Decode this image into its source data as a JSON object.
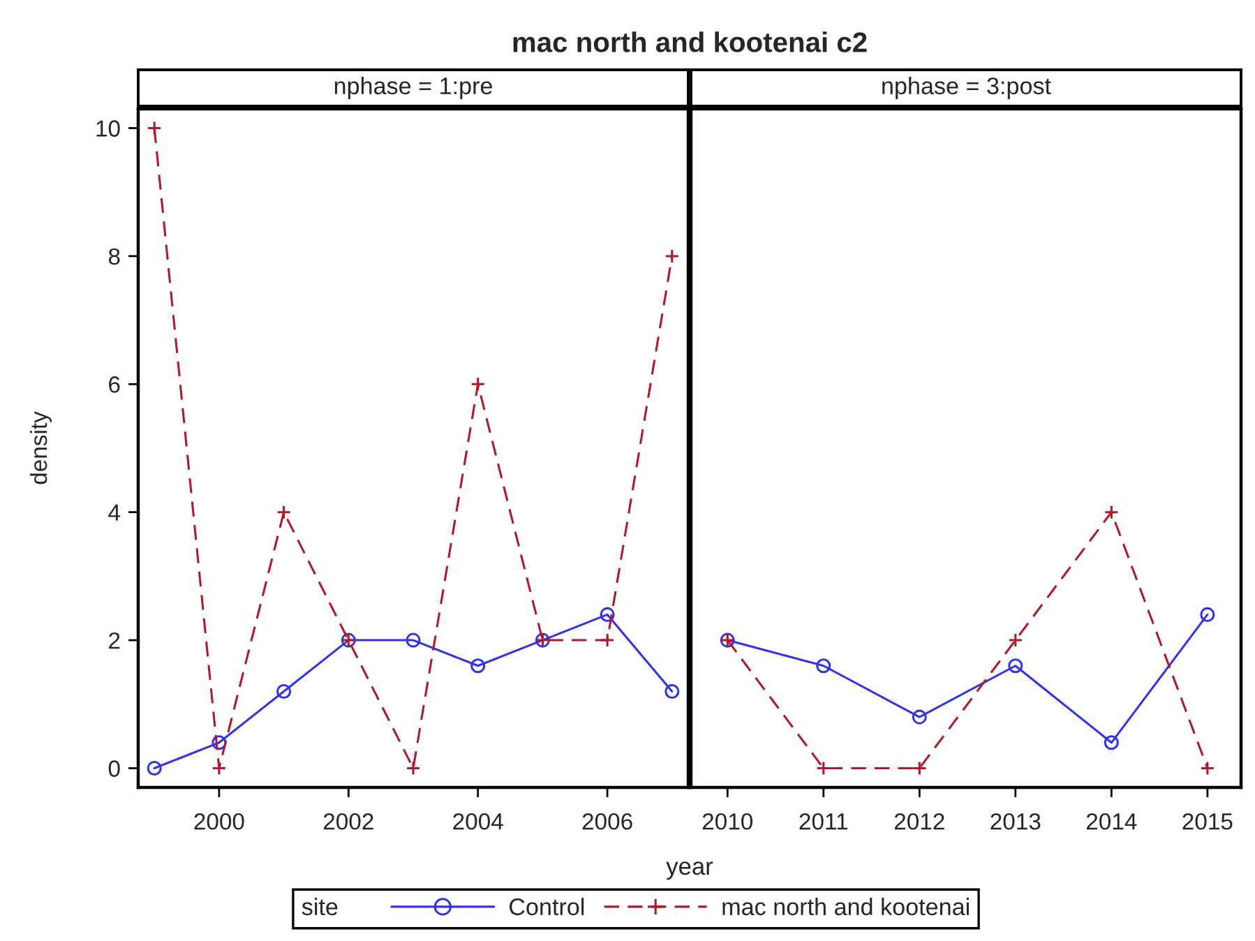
{
  "chart_data": [
    {
      "type": "line",
      "title": "mac north and kootenai c2",
      "subtitle": "nphase = 1:pre",
      "xlabel": "year",
      "ylabel": "density",
      "legend_title": "site",
      "legend": "bottom",
      "x": [
        1999,
        2000,
        2001,
        2002,
        2003,
        2004,
        2005,
        2006,
        2007
      ],
      "series": [
        {
          "name": "Control",
          "color": "#3333e6",
          "marker": "circle",
          "line_style": "solid",
          "values": [
            0,
            0.4,
            1.2,
            2,
            2,
            1.6,
            2,
            2.4,
            1.2
          ]
        },
        {
          "name": "mac north and kootenai",
          "color": "#b2182b",
          "marker": "cross",
          "line_style": "dashed",
          "values": [
            10,
            0,
            4,
            2,
            0,
            6,
            2,
            2,
            8
          ]
        }
      ],
      "xlim": [
        1998.75,
        2007.25
      ],
      "xticks": [
        2000,
        2002,
        2004,
        2006
      ],
      "ylim": [
        -0.3,
        10.3
      ],
      "yticks": [
        0,
        2,
        4,
        6,
        8,
        10
      ]
    },
    {
      "type": "line",
      "subtitle": "nphase = 3:post",
      "tick_labels": "x",
      "x": [
        2010,
        2011,
        2012,
        2013,
        2014,
        2015
      ],
      "series": [
        {
          "name": "Control",
          "color": "#3333e6",
          "marker": "circle",
          "line_style": "solid",
          "values": [
            2,
            1.6,
            0.8,
            1.6,
            0.4,
            2.4
          ]
        },
        {
          "name": "mac north and kootenai",
          "color": "#b2182b",
          "marker": "cross",
          "line_style": "dashed",
          "values": [
            2,
            0,
            0,
            2,
            4,
            0
          ]
        }
      ],
      "xlim": [
        2009.62,
        2015.35
      ],
      "xticks": [
        2010,
        2011,
        2012,
        2013,
        2014,
        2015
      ],
      "ylim": [
        -0.3,
        10.3
      ],
      "yticks": [
        0,
        2,
        4,
        6,
        8,
        10
      ]
    }
  ]
}
